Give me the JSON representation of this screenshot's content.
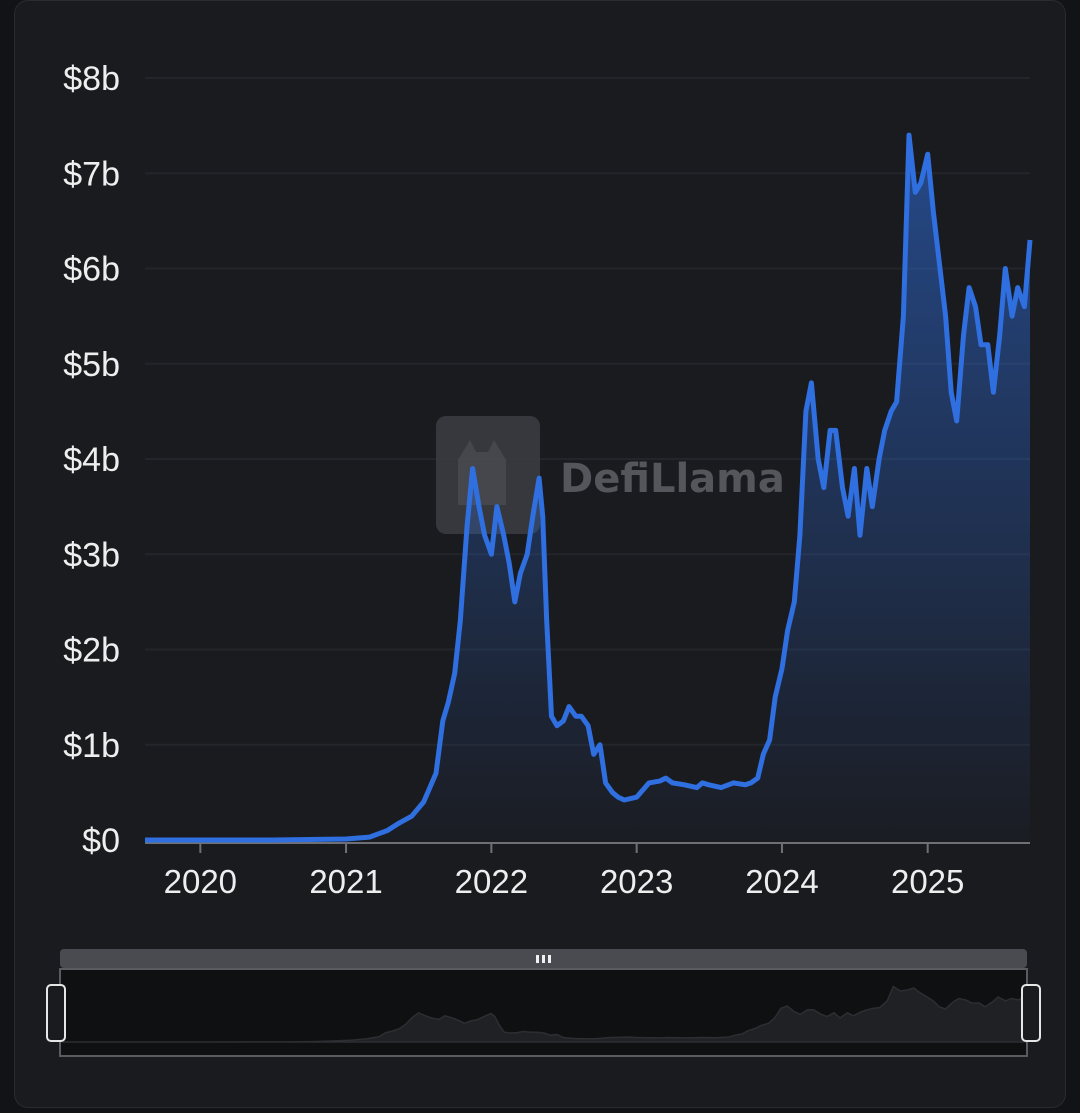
{
  "watermark": "DefiLlama",
  "colors": {
    "line": "#2f6fe0",
    "background": "#1a1b1f",
    "grid": "#23252a",
    "axis_text": "#eeeeee"
  },
  "chart_data": {
    "type": "area",
    "title": "",
    "xlabel": "",
    "ylabel": "",
    "ylim": [
      0,
      8
    ],
    "xlim": [
      "2019-08-15",
      "2025-09-15"
    ],
    "y_unit": "billion USD",
    "grid": "horizontal",
    "legend": "none",
    "ytick_values": [
      0,
      1,
      2,
      3,
      4,
      5,
      6,
      7,
      8
    ],
    "ytick_labels": [
      "$0",
      "$1b",
      "$2b",
      "$3b",
      "$4b",
      "$5b",
      "$6b",
      "$7b",
      "$8b"
    ],
    "xtick_values": [
      "2020-01-01",
      "2021-01-01",
      "2022-01-01",
      "2023-01-01",
      "2024-01-01",
      "2025-01-01"
    ],
    "xtick_labels": [
      "2020",
      "2021",
      "2022",
      "2023",
      "2024",
      "2025"
    ],
    "series": [
      {
        "x": [
          "2019-08-15",
          "2020-01-01",
          "2020-07-01",
          "2021-01-01",
          "2021-03-01",
          "2021-04-15",
          "2021-05-15",
          "2021-06-15",
          "2021-07-15",
          "2021-08-15",
          "2021-09-01",
          "2021-09-15",
          "2021-10-01",
          "2021-10-15",
          "2021-11-01",
          "2021-11-15",
          "2021-12-01",
          "2021-12-15",
          "2022-01-01",
          "2022-01-15",
          "2022-02-01",
          "2022-02-15",
          "2022-03-01",
          "2022-03-15",
          "2022-04-01",
          "2022-04-15",
          "2022-05-01",
          "2022-05-10",
          "2022-05-20",
          "2022-06-01",
          "2022-06-15",
          "2022-07-01",
          "2022-07-15",
          "2022-08-01",
          "2022-08-15",
          "2022-09-01",
          "2022-09-15",
          "2022-10-01",
          "2022-10-15",
          "2022-11-01",
          "2022-11-15",
          "2022-12-01",
          "2023-01-01",
          "2023-02-01",
          "2023-03-01",
          "2023-03-15",
          "2023-04-01",
          "2023-05-01",
          "2023-06-01",
          "2023-06-15",
          "2023-07-01",
          "2023-08-01",
          "2023-09-01",
          "2023-10-01",
          "2023-10-15",
          "2023-11-01",
          "2023-11-15",
          "2023-12-01",
          "2023-12-15",
          "2024-01-01",
          "2024-01-15",
          "2024-02-01",
          "2024-02-15",
          "2024-03-01",
          "2024-03-15",
          "2024-04-01",
          "2024-04-15",
          "2024-05-01",
          "2024-05-15",
          "2024-06-01",
          "2024-06-15",
          "2024-07-01",
          "2024-07-15",
          "2024-08-01",
          "2024-08-15",
          "2024-09-01",
          "2024-09-15",
          "2024-10-01",
          "2024-10-15",
          "2024-11-01",
          "2024-11-15",
          "2024-12-01",
          "2024-12-15",
          "2025-01-01",
          "2025-01-15",
          "2025-02-01",
          "2025-02-15",
          "2025-03-01",
          "2025-03-15",
          "2025-04-01",
          "2025-04-15",
          "2025-05-01",
          "2025-05-15",
          "2025-06-01",
          "2025-06-15",
          "2025-07-01",
          "2025-07-15",
          "2025-08-01",
          "2025-08-15",
          "2025-09-01",
          "2025-09-15"
        ],
        "y": [
          0.0,
          0.0,
          0.0,
          0.01,
          0.03,
          0.1,
          0.18,
          0.25,
          0.4,
          0.7,
          1.25,
          1.45,
          1.75,
          2.3,
          3.3,
          3.9,
          3.5,
          3.2,
          3.0,
          3.5,
          3.2,
          2.9,
          2.5,
          2.8,
          3.0,
          3.4,
          3.8,
          3.4,
          2.3,
          1.3,
          1.2,
          1.25,
          1.4,
          1.3,
          1.3,
          1.2,
          0.9,
          1.0,
          0.6,
          0.5,
          0.45,
          0.42,
          0.45,
          0.6,
          0.62,
          0.65,
          0.6,
          0.58,
          0.55,
          0.6,
          0.58,
          0.55,
          0.6,
          0.58,
          0.6,
          0.65,
          0.9,
          1.05,
          1.5,
          1.8,
          2.2,
          2.5,
          3.2,
          4.5,
          4.8,
          4.0,
          3.7,
          4.3,
          4.3,
          3.7,
          3.4,
          3.9,
          3.2,
          3.9,
          3.5,
          4.0,
          4.3,
          4.5,
          4.6,
          5.5,
          7.4,
          6.8,
          6.9,
          7.2,
          6.6,
          6.0,
          5.5,
          4.7,
          4.4,
          5.3,
          5.8,
          5.6,
          5.2,
          5.2,
          4.7,
          5.3,
          6.0,
          5.5,
          5.8,
          5.6,
          6.3
        ]
      }
    ]
  }
}
